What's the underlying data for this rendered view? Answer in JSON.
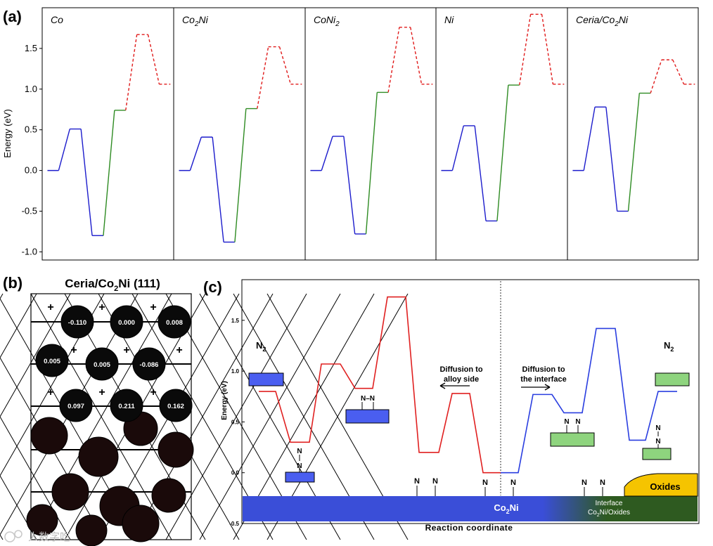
{
  "labels": {
    "a": "(a)",
    "b": "(b)",
    "c": "(c)"
  },
  "colors": {
    "step1": "#1c1ccc",
    "step2": "#2e8b22",
    "step3": "#e01b1b",
    "c_left": "#e02020",
    "c_right": "#2a3ee0",
    "n2_blue": "#4a5ef0",
    "n2_green": "#8ed47e",
    "bar_blue": "#3a4ed8",
    "bar_green": "#2e5a20",
    "oxides": "#f5c400"
  },
  "chart_data": [
    {
      "type": "line",
      "panel": "(a)",
      "ylabel": "Energy (eV)",
      "ylim": [
        -1.1,
        2.0
      ],
      "yticks": [
        "-1.0",
        "-0.5",
        "0.0",
        "0.5",
        "1.0",
        "1.5"
      ],
      "ytick_values": [
        -1.0,
        -0.5,
        0.0,
        0.5,
        1.0,
        1.5
      ],
      "subplots": [
        {
          "title": "Co",
          "title_main": "Co",
          "title_sub": "",
          "title_tail": "",
          "levels": [
            0.0,
            0.51,
            -0.8,
            0.74,
            1.67,
            1.06
          ]
        },
        {
          "title": "Co2Ni",
          "title_main": "Co",
          "title_sub": "2",
          "title_tail": "Ni",
          "levels": [
            0.0,
            0.41,
            -0.88,
            0.76,
            1.52,
            1.06
          ]
        },
        {
          "title": "CoNi2",
          "title_main": "CoNi",
          "title_sub": "2",
          "title_tail": "",
          "levels": [
            0.0,
            0.42,
            -0.78,
            0.96,
            1.76,
            1.06
          ]
        },
        {
          "title": "Ni",
          "title_main": "Ni",
          "title_sub": "",
          "title_tail": "",
          "levels": [
            0.0,
            0.55,
            -0.62,
            1.05,
            1.92,
            1.06
          ]
        },
        {
          "title": "Ceria/Co2Ni",
          "title_main": "Ceria/Co",
          "title_sub": "2",
          "title_tail": "Ni",
          "levels": [
            0.0,
            0.78,
            -0.5,
            0.95,
            1.36,
            1.06
          ]
        }
      ]
    },
    {
      "type": "line",
      "panel": "(c)",
      "xlabel": "Reaction coordinate",
      "ylabel": "Energy (eV)",
      "ylim": [
        -0.5,
        1.9
      ],
      "yticks": [
        "-0.5",
        "0.0",
        "0.5",
        "1.0",
        "1.5"
      ],
      "ytick_values": [
        -0.5,
        0.0,
        0.5,
        1.0,
        1.5
      ],
      "series": [
        {
          "name": "alloy side",
          "color": "#e02020",
          "levels": [
            0.8,
            0.3,
            1.07,
            0.83,
            1.73,
            0.2,
            0.78,
            0.0
          ]
        },
        {
          "name": "interface",
          "color": "#2a3ee0",
          "levels": [
            0.0,
            0.77,
            0.59,
            1.42,
            0.32,
            0.8
          ]
        }
      ],
      "annotations": {
        "n2_left": "N",
        "n2_right": "N",
        "n2_sub": "2",
        "diff_left_1": "Diffusion to",
        "diff_left_2": "alloy side",
        "diff_right_1": "Diffusion to",
        "diff_right_2": "the interface",
        "atom": "N",
        "nn": "N–N",
        "substrate_main": "Co",
        "substrate_sub": "2",
        "substrate_tail": "Ni",
        "interface_1": "Interface",
        "interface_2_main": "Co",
        "interface_2_sub": "2",
        "interface_2_tail": "Ni/Oxides",
        "oxides": "Oxides"
      }
    }
  ],
  "panel_b": {
    "title_main": "Ceria/Co",
    "title_sub": "2",
    "title_tail": "Ni (111)",
    "charges": [
      "-0.110",
      "0.000",
      "0.008",
      "0.005",
      "0.005",
      "-0.086",
      "0.097",
      "0.211",
      "0.162"
    ]
  },
  "watermark": "人数字吃"
}
